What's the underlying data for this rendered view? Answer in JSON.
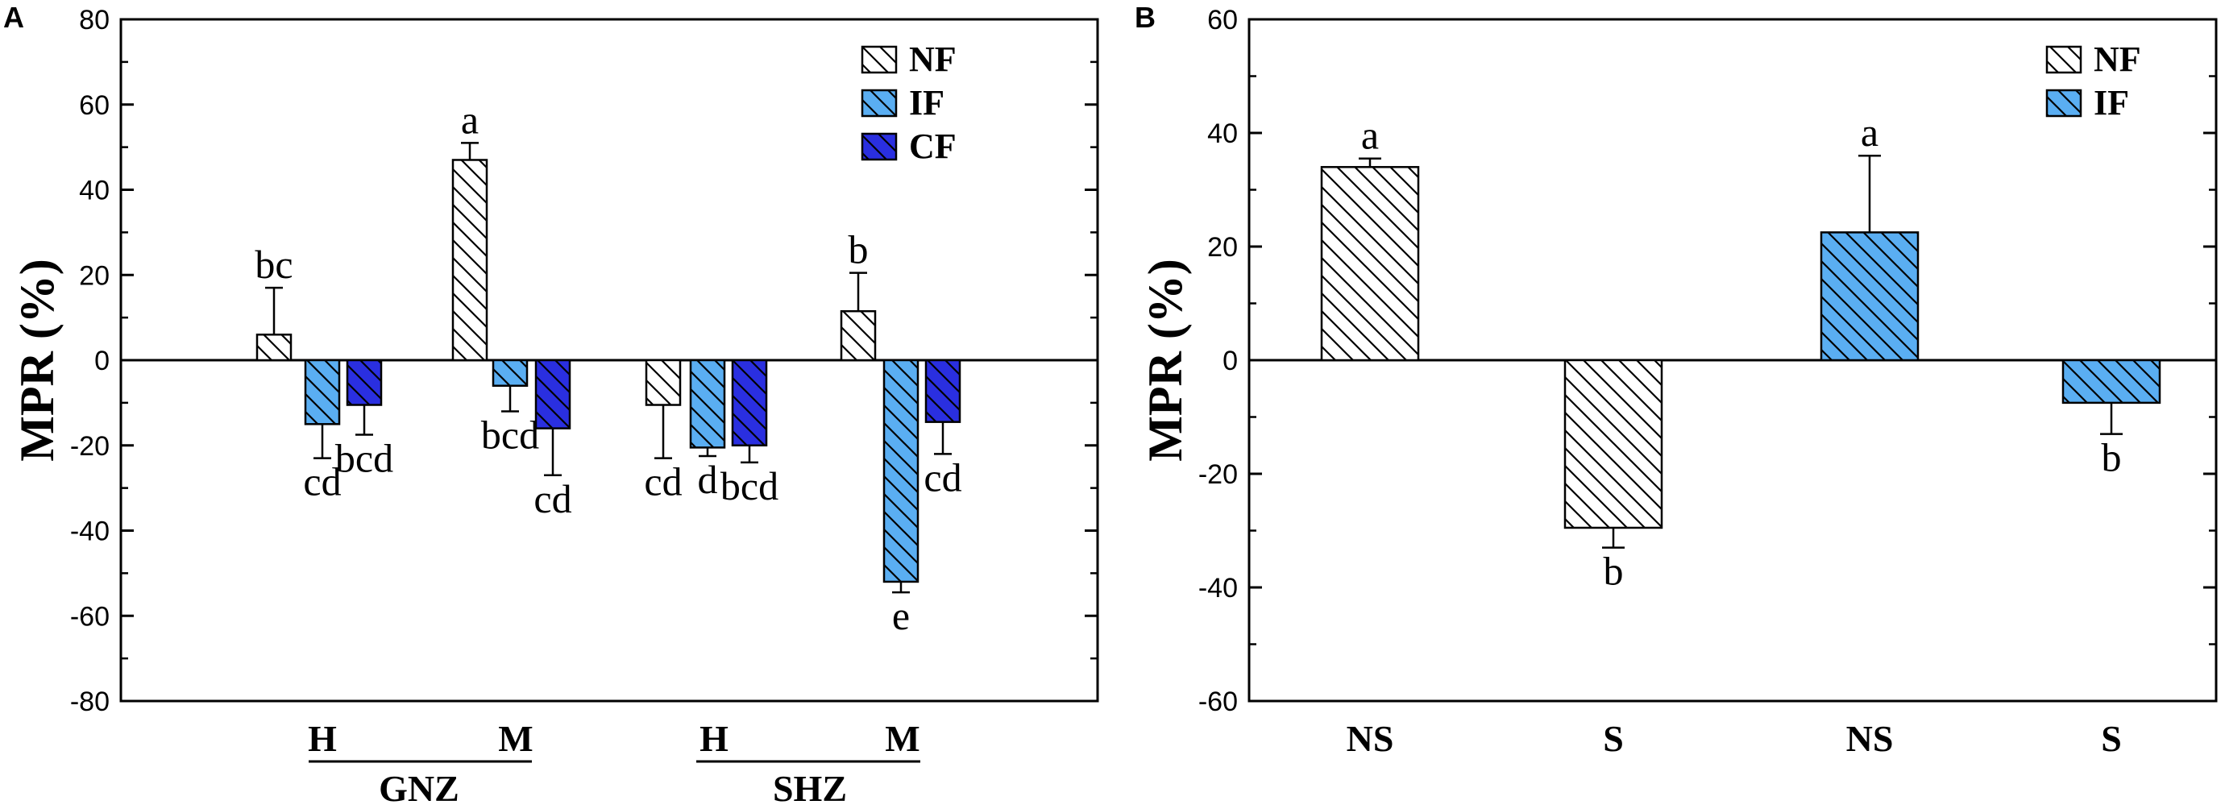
{
  "chart_data": [
    {
      "panel": "A",
      "type": "bar",
      "ylabel": "MPR (%)",
      "ylim": [
        -80,
        80
      ],
      "yticks": [
        -80,
        -60,
        -40,
        -20,
        0,
        20,
        40,
        60,
        80
      ],
      "categories": [
        "GNZ-H",
        "GNZ-M",
        "SHZ-H",
        "SHZ-M"
      ],
      "x_tick_labels": [
        "H",
        "M",
        "H",
        "M"
      ],
      "group_labels": [
        "GNZ",
        "SHZ"
      ],
      "legend_position": "top-right",
      "series": [
        {
          "name": "NF",
          "color": "#ffffff",
          "values": [
            6,
            47,
            -10.5,
            11.5
          ],
          "errors": [
            11,
            4,
            12.5,
            9
          ],
          "letters": [
            "bc",
            "a",
            "cd",
            "b"
          ]
        },
        {
          "name": "IF",
          "color": "#5aaef2",
          "values": [
            -15,
            -6,
            -20.5,
            -52
          ],
          "errors": [
            8,
            6,
            2,
            2.5
          ],
          "letters": [
            "cd",
            "bcd",
            "d",
            "e"
          ]
        },
        {
          "name": "CF",
          "color": "#2a2fe0",
          "values": [
            -10.5,
            -16,
            -20,
            -14.5
          ],
          "errors": [
            7,
            11,
            4,
            7.5
          ],
          "letters": [
            "bcd",
            "cd",
            "bcd",
            "cd"
          ]
        }
      ]
    },
    {
      "panel": "B",
      "type": "bar",
      "ylabel": "MPR (%)",
      "ylim": [
        -60,
        60
      ],
      "yticks": [
        -60,
        -40,
        -20,
        0,
        20,
        40,
        60
      ],
      "categories": [
        "NS",
        "S",
        "NS",
        "S"
      ],
      "legend_position": "top-right",
      "series_names": [
        "NF",
        "IF"
      ],
      "series_colors": [
        "#ffffff",
        "#5aaef2"
      ],
      "bars": [
        {
          "category": "NS",
          "series": "NF",
          "value": 34,
          "error": 1.5,
          "letter": "a"
        },
        {
          "category": "S",
          "series": "NF",
          "value": -29.5,
          "error": 3.5,
          "letter": "b"
        },
        {
          "category": "NS",
          "series": "IF",
          "value": 22.5,
          "error": 13.5,
          "letter": "a"
        },
        {
          "category": "S",
          "series": "IF",
          "value": -7.5,
          "error": 5.5,
          "letter": "b"
        }
      ]
    }
  ]
}
